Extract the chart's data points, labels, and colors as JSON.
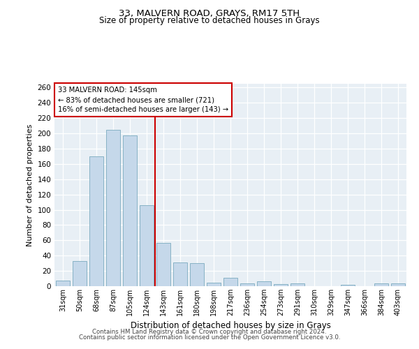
{
  "title1": "33, MALVERN ROAD, GRAYS, RM17 5TH",
  "title2": "Size of property relative to detached houses in Grays",
  "xlabel": "Distribution of detached houses by size in Grays",
  "ylabel": "Number of detached properties",
  "categories": [
    "31sqm",
    "50sqm",
    "68sqm",
    "87sqm",
    "105sqm",
    "124sqm",
    "143sqm",
    "161sqm",
    "180sqm",
    "198sqm",
    "217sqm",
    "236sqm",
    "254sqm",
    "273sqm",
    "291sqm",
    "310sqm",
    "329sqm",
    "347sqm",
    "366sqm",
    "384sqm",
    "403sqm"
  ],
  "values": [
    7,
    33,
    170,
    205,
    197,
    106,
    57,
    31,
    30,
    5,
    11,
    4,
    6,
    3,
    4,
    0,
    0,
    2,
    0,
    4,
    4
  ],
  "bar_color": "#c5d8ea",
  "bar_edge_color": "#7aaabf",
  "ref_line_index": 6,
  "ref_line_color": "#cc0000",
  "annotation_label": "33 MALVERN ROAD: 145sqm",
  "annotation_line1": "← 83% of detached houses are smaller (721)",
  "annotation_line2": "16% of semi-detached houses are larger (143) →",
  "annotation_box_facecolor": "#ffffff",
  "annotation_box_edgecolor": "#cc0000",
  "background_color": "#e8eff5",
  "ylim": [
    0,
    265
  ],
  "yticks": [
    0,
    20,
    40,
    60,
    80,
    100,
    120,
    140,
    160,
    180,
    200,
    220,
    240,
    260
  ],
  "footer1": "Contains HM Land Registry data © Crown copyright and database right 2024.",
  "footer2": "Contains public sector information licensed under the Open Government Licence v3.0."
}
